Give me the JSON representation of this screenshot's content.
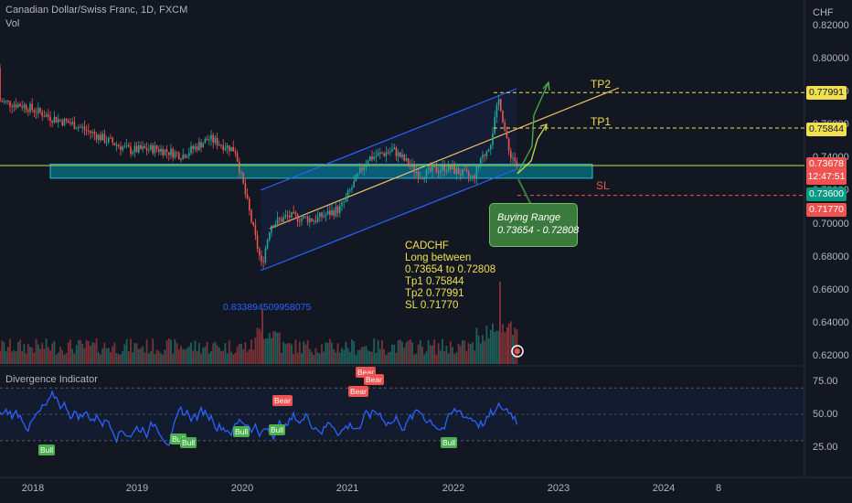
{
  "header": {
    "title": "Canadian Dollar/Swiss Franc, 1D, FXCM",
    "volume_label": "Vol"
  },
  "price_axis": {
    "currency": "CHF",
    "labels": [
      "0.82000",
      "0.80000",
      "0.78000",
      "0.76000",
      "0.74000",
      "0.72000",
      "0.70000",
      "0.68000",
      "0.66000",
      "0.64000",
      "0.62000"
    ]
  },
  "price_tags": {
    "tp2": "0.77991",
    "tp1": "0.75844",
    "current": "0.73678",
    "countdown": "12:47:51",
    "range_low": "0.73600",
    "stop_loss": "0.71770"
  },
  "time_axis": {
    "labels": [
      "2018",
      "2019",
      "2020",
      "2021",
      "2022",
      "2023",
      "2024",
      "8"
    ]
  },
  "annotations": {
    "tp2_label": "TP2",
    "tp1_label": "TP1",
    "sl_label": "SL",
    "channel_low_value": "0.833894509958075",
    "buying_range_title": "Buying Range",
    "buying_range_value": "0.73654 - 0.72808",
    "trade_note": [
      "CADCHF",
      "Long between",
      "0.73654 to 0.72808",
      "Tp1 0.75844",
      "Tp2 0.77991",
      "SL 0.71770"
    ]
  },
  "oscillator": {
    "title": "Divergence Indicator",
    "axis_labels": [
      "75.00",
      "50.00",
      "25.00"
    ],
    "bull_label": "Bull",
    "bear_label": "Bear"
  },
  "colors": {
    "background": "#131722",
    "up": "#26a69a",
    "down": "#ef5350",
    "channel": "#2962ff",
    "trendline": "#f0c060",
    "zone": "#0097a7",
    "stop_loss": "#ef5350",
    "range_low": "#089981",
    "tp": "#f0e050",
    "oscillator_line": "#2962ff",
    "bull": "#4caf50",
    "bear": "#f05350"
  },
  "chart_data": {
    "type": "line",
    "title": "Canadian Dollar/Swiss Franc, 1D, FXCM",
    "x": [
      "2017-03",
      "2017-06",
      "2017-09",
      "2017-12",
      "2018-03",
      "2018-06",
      "2018-09",
      "2018-12",
      "2019-03",
      "2019-06",
      "2019-09",
      "2019-12",
      "2020-03",
      "2020-04",
      "2020-06",
      "2020-09",
      "2020-12",
      "2021-03",
      "2021-06",
      "2021-09",
      "2021-12",
      "2022-03",
      "2022-05",
      "2022-06",
      "2022-07",
      "2022-08"
    ],
    "series": [
      {
        "values": [
          0.795,
          0.78,
          0.775,
          0.772,
          0.765,
          0.76,
          0.752,
          0.745,
          0.746,
          0.742,
          0.752,
          0.745,
          0.675,
          0.7,
          0.705,
          0.703,
          0.71,
          0.74,
          0.745,
          0.73,
          0.735,
          0.728,
          0.75,
          0.777,
          0.745,
          0.737
        ]
      }
    ],
    "ylim": [
      0.615,
      0.83
    ],
    "horizontal_levels": [
      0.77991,
      0.75844,
      0.73654,
      0.736,
      0.72808,
      0.7177
    ],
    "oscillator": {
      "ylim": [
        10,
        85
      ],
      "levels": [
        70,
        50,
        30
      ],
      "last_value": 42
    }
  }
}
